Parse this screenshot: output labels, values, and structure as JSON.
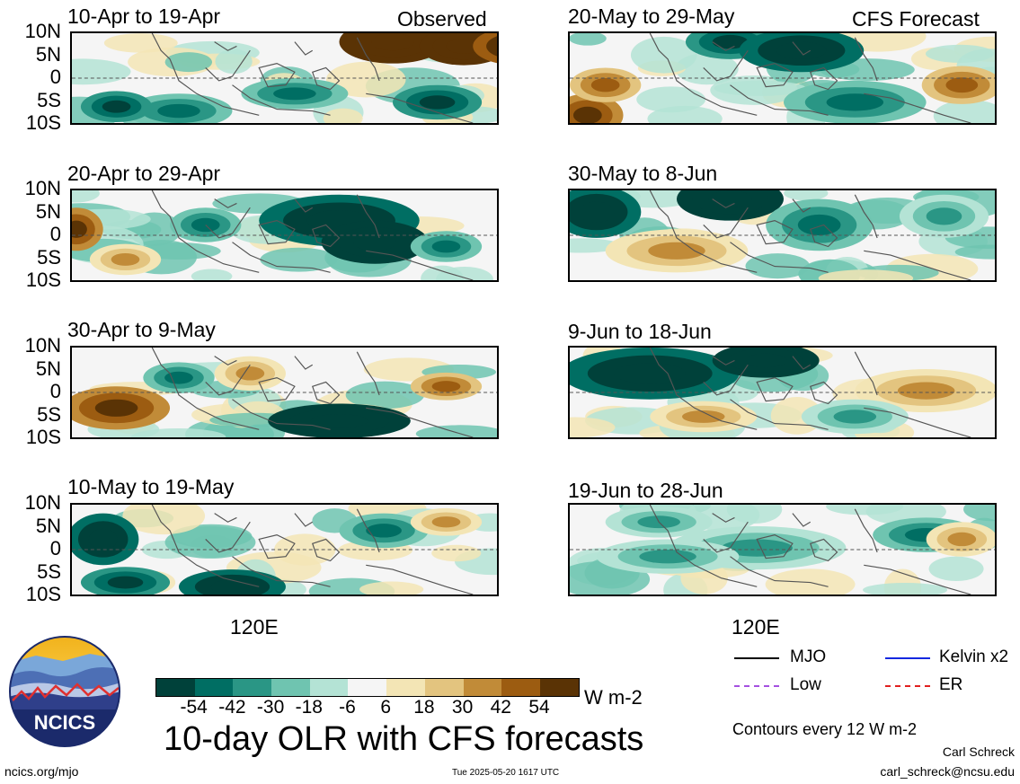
{
  "panels_observed": [
    {
      "title": "10-Apr to 19-Apr",
      "tag": "Observed"
    },
    {
      "title": "20-Apr to 29-Apr"
    },
    {
      "title": "30-Apr to 9-May"
    },
    {
      "title": "10-May to 19-May"
    }
  ],
  "panels_forecast": [
    {
      "title": "20-May to 29-May",
      "tag": "CFS Forecast"
    },
    {
      "title": "30-May to 8-Jun"
    },
    {
      "title": "9-Jun to 18-Jun"
    },
    {
      "title": "19-Jun to 28-Jun"
    }
  ],
  "lat_labels": [
    "10N",
    "5N",
    "0",
    "5S",
    "10S"
  ],
  "lon_label": "120E",
  "colorbar": {
    "colors": [
      "#00413a",
      "#006e63",
      "#2a9685",
      "#6fc4b0",
      "#b4e3d5",
      "#f5f5f5",
      "#f3e5b5",
      "#e3c47f",
      "#c18b38",
      "#9c5c11",
      "#5a3305"
    ],
    "labels": [
      "-54",
      "-42",
      "-30",
      "-18",
      "-6",
      "6",
      "18",
      "30",
      "42",
      "54"
    ],
    "unit": "W m-2"
  },
  "legend": {
    "items": [
      {
        "label": "MJO",
        "color": "#000000"
      },
      {
        "label": "Kelvin x2",
        "color": "#1428e0"
      },
      {
        "label": "Low",
        "color": "#a550e0"
      },
      {
        "label": "ER",
        "color": "#e02020"
      }
    ],
    "contour_note": "Contours every 12 W m-2"
  },
  "main_title": "10-day OLR with CFS forecasts",
  "logo_text": "NCICS",
  "footer": {
    "url": "ncics.org/mjo",
    "timestamp": "Tue 2025-05-20 1617 UTC",
    "author": "Carl Schreck",
    "email": "carl_schreck@ncsu.edu"
  }
}
